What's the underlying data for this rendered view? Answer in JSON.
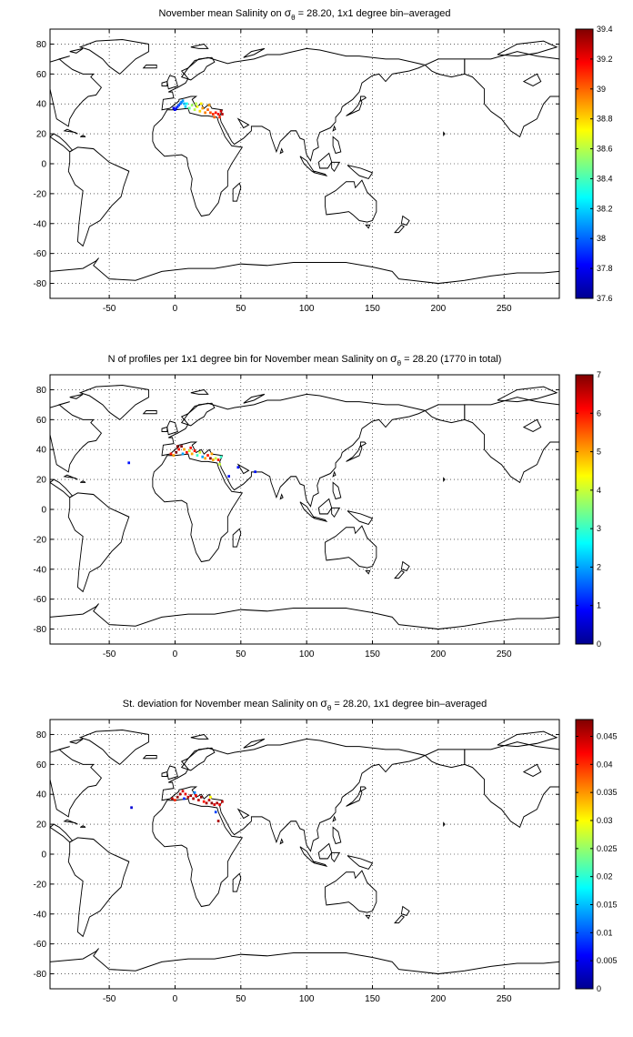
{
  "chart_data": [
    {
      "type": "heatmap",
      "title": {
        "pre": "November mean Salinity on ",
        "sym": "σ",
        "sub": "θ",
        "post": " = 28.20, 1x1 degree bin–averaged"
      },
      "xlabel": "",
      "ylabel": "",
      "xlim": [
        -95,
        292
      ],
      "ylim": [
        -90,
        90
      ],
      "xticks": [
        -50,
        0,
        50,
        100,
        150,
        200,
        250
      ],
      "yticks": [
        -80,
        -60,
        -40,
        -20,
        0,
        20,
        40,
        60,
        80
      ],
      "grid": true,
      "colorbar": {
        "range": [
          37.6,
          39.4
        ],
        "ticks": [
          "37.6",
          "37.8",
          "38",
          "38.2",
          "38.4",
          "38.6",
          "38.8",
          "39",
          "39.2",
          "39.4"
        ],
        "tick_values": [
          37.6,
          37.8,
          38.0,
          38.2,
          38.4,
          38.6,
          38.8,
          39.0,
          39.2,
          39.4
        ]
      },
      "cells": [
        {
          "lon": -2,
          "lat": 37,
          "v": 37.75
        },
        {
          "lon": -1,
          "lat": 36,
          "v": 37.8
        },
        {
          "lon": 0,
          "lat": 37,
          "v": 37.85
        },
        {
          "lon": 1,
          "lat": 38,
          "v": 37.9
        },
        {
          "lon": 2,
          "lat": 39,
          "v": 37.95
        },
        {
          "lon": 3,
          "lat": 40,
          "v": 38.0
        },
        {
          "lon": 4,
          "lat": 41,
          "v": 38.05
        },
        {
          "lon": 5,
          "lat": 42,
          "v": 38.1
        },
        {
          "lon": 6,
          "lat": 40,
          "v": 38.15
        },
        {
          "lon": 7,
          "lat": 38,
          "v": 38.2
        },
        {
          "lon": 8,
          "lat": 40,
          "v": 38.3
        },
        {
          "lon": 10,
          "lat": 37,
          "v": 38.45
        },
        {
          "lon": 12,
          "lat": 39,
          "v": 38.55
        },
        {
          "lon": 14,
          "lat": 36,
          "v": 38.6
        },
        {
          "lon": 16,
          "lat": 38,
          "v": 38.7
        },
        {
          "lon": 18,
          "lat": 35,
          "v": 38.8
        },
        {
          "lon": 20,
          "lat": 37,
          "v": 38.9
        },
        {
          "lon": 22,
          "lat": 34,
          "v": 38.95
        },
        {
          "lon": 24,
          "lat": 36,
          "v": 39.0
        },
        {
          "lon": 26,
          "lat": 34,
          "v": 39.05
        },
        {
          "lon": 28,
          "lat": 33,
          "v": 39.1
        },
        {
          "lon": 30,
          "lat": 34,
          "v": 39.15
        },
        {
          "lon": 32,
          "lat": 33,
          "v": 39.2
        },
        {
          "lon": 34,
          "lat": 35,
          "v": 39.25
        },
        {
          "lon": 35,
          "lat": 33,
          "v": 39.3
        },
        {
          "lon": 33,
          "lat": 31,
          "v": 39.1
        },
        {
          "lon": 29,
          "lat": 31,
          "v": 39.0
        },
        {
          "lon": 25,
          "lat": 39,
          "v": 38.9
        },
        {
          "lon": 19,
          "lat": 40,
          "v": 38.75
        },
        {
          "lon": 15,
          "lat": 40,
          "v": 38.6
        }
      ]
    },
    {
      "type": "heatmap",
      "title": {
        "pre": "N of profiles per 1x1 degree bin for November mean Salinity on ",
        "sym": "σ",
        "sub": "θ",
        "post": " = 28.20 (1770 in total)"
      },
      "xlabel": "",
      "ylabel": "",
      "xlim": [
        -95,
        292
      ],
      "ylim": [
        -90,
        90
      ],
      "xticks": [
        -50,
        0,
        50,
        100,
        150,
        200,
        250
      ],
      "yticks": [
        -80,
        -60,
        -40,
        -20,
        0,
        20,
        40,
        60,
        80
      ],
      "grid": true,
      "colorbar": {
        "range": [
          0,
          7
        ],
        "ticks": [
          "0",
          "1",
          "2",
          "3",
          "4",
          "5",
          "6",
          "7"
        ],
        "tick_values": [
          0,
          1,
          2,
          3,
          4,
          5,
          6,
          7
        ]
      },
      "cells": [
        {
          "lon": -4,
          "lat": 37,
          "v": 6
        },
        {
          "lon": -2,
          "lat": 36,
          "v": 5
        },
        {
          "lon": 0,
          "lat": 38,
          "v": 7
        },
        {
          "lon": 2,
          "lat": 40,
          "v": 6
        },
        {
          "lon": 4,
          "lat": 42,
          "v": 7
        },
        {
          "lon": 6,
          "lat": 40,
          "v": 5
        },
        {
          "lon": 8,
          "lat": 38,
          "v": 6
        },
        {
          "lon": 10,
          "lat": 39,
          "v": 4
        },
        {
          "lon": 12,
          "lat": 37,
          "v": 5
        },
        {
          "lon": 14,
          "lat": 39,
          "v": 6
        },
        {
          "lon": 16,
          "lat": 36,
          "v": 3
        },
        {
          "lon": 18,
          "lat": 38,
          "v": 4
        },
        {
          "lon": 20,
          "lat": 35,
          "v": 2
        },
        {
          "lon": 22,
          "lat": 34,
          "v": 5
        },
        {
          "lon": 24,
          "lat": 36,
          "v": 6
        },
        {
          "lon": 26,
          "lat": 34,
          "v": 7
        },
        {
          "lon": 28,
          "lat": 33,
          "v": 5
        },
        {
          "lon": 30,
          "lat": 34,
          "v": 4
        },
        {
          "lon": 32,
          "lat": 33,
          "v": 6
        },
        {
          "lon": 34,
          "lat": 35,
          "v": 3
        },
        {
          "lon": 1,
          "lat": 42,
          "v": 7
        },
        {
          "lon": 5,
          "lat": 37,
          "v": 2
        },
        {
          "lon": 11,
          "lat": 41,
          "v": 6
        },
        {
          "lon": 27,
          "lat": 37,
          "v": 5
        },
        {
          "lon": 33,
          "lat": 30,
          "v": 4
        },
        {
          "lon": -36,
          "lat": 31,
          "v": 1
        },
        {
          "lon": 40,
          "lat": 22,
          "v": 1
        },
        {
          "lon": 47,
          "lat": 28,
          "v": 1
        },
        {
          "lon": 60,
          "lat": 25,
          "v": 1
        }
      ]
    },
    {
      "type": "heatmap",
      "title": {
        "pre": "St. deviation for November mean Salinity on ",
        "sym": "σ",
        "sub": "θ",
        "post": " = 28.20, 1x1 degree bin–averaged"
      },
      "xlabel": "",
      "ylabel": "",
      "xlim": [
        -95,
        292
      ],
      "ylim": [
        -90,
        90
      ],
      "xticks": [
        -50,
        0,
        50,
        100,
        150,
        200,
        250
      ],
      "yticks": [
        -80,
        -60,
        -40,
        -20,
        0,
        20,
        40,
        60,
        80
      ],
      "grid": true,
      "colorbar": {
        "range": [
          0,
          0.048
        ],
        "ticks": [
          "0",
          "0.005",
          "0.01",
          "0.015",
          "0.02",
          "0.025",
          "0.03",
          "0.035",
          "0.04",
          "0.045"
        ],
        "tick_values": [
          0,
          0.005,
          0.01,
          0.015,
          0.02,
          0.025,
          0.03,
          0.035,
          0.04,
          0.045
        ]
      },
      "cells": [
        {
          "lon": -3,
          "lat": 37,
          "v": 0.045
        },
        {
          "lon": -1,
          "lat": 36,
          "v": 0.04
        },
        {
          "lon": 1,
          "lat": 38,
          "v": 0.047
        },
        {
          "lon": 3,
          "lat": 40,
          "v": 0.046
        },
        {
          "lon": 5,
          "lat": 42,
          "v": 0.044
        },
        {
          "lon": 7,
          "lat": 40,
          "v": 0.043
        },
        {
          "lon": 9,
          "lat": 38,
          "v": 0.045
        },
        {
          "lon": 11,
          "lat": 39,
          "v": 0.047
        },
        {
          "lon": 13,
          "lat": 37,
          "v": 0.046
        },
        {
          "lon": 15,
          "lat": 39,
          "v": 0.042
        },
        {
          "lon": 17,
          "lat": 36,
          "v": 0.045
        },
        {
          "lon": 19,
          "lat": 38,
          "v": 0.047
        },
        {
          "lon": 21,
          "lat": 35,
          "v": 0.041
        },
        {
          "lon": 23,
          "lat": 34,
          "v": 0.046
        },
        {
          "lon": 25,
          "lat": 36,
          "v": 0.045
        },
        {
          "lon": 27,
          "lat": 34,
          "v": 0.047
        },
        {
          "lon": 29,
          "lat": 33,
          "v": 0.044
        },
        {
          "lon": 31,
          "lat": 34,
          "v": 0.046
        },
        {
          "lon": 33,
          "lat": 33,
          "v": 0.043
        },
        {
          "lon": 35,
          "lat": 35,
          "v": 0.045
        },
        {
          "lon": 6,
          "lat": 37,
          "v": 0.008
        },
        {
          "lon": 14,
          "lat": 41,
          "v": 0.012
        },
        {
          "lon": 26,
          "lat": 38,
          "v": 0.03
        },
        {
          "lon": 30,
          "lat": 28,
          "v": 0.009
        },
        {
          "lon": 32,
          "lat": 22,
          "v": 0.046
        },
        {
          "lon": -34,
          "lat": 31,
          "v": 0.004
        }
      ]
    }
  ]
}
